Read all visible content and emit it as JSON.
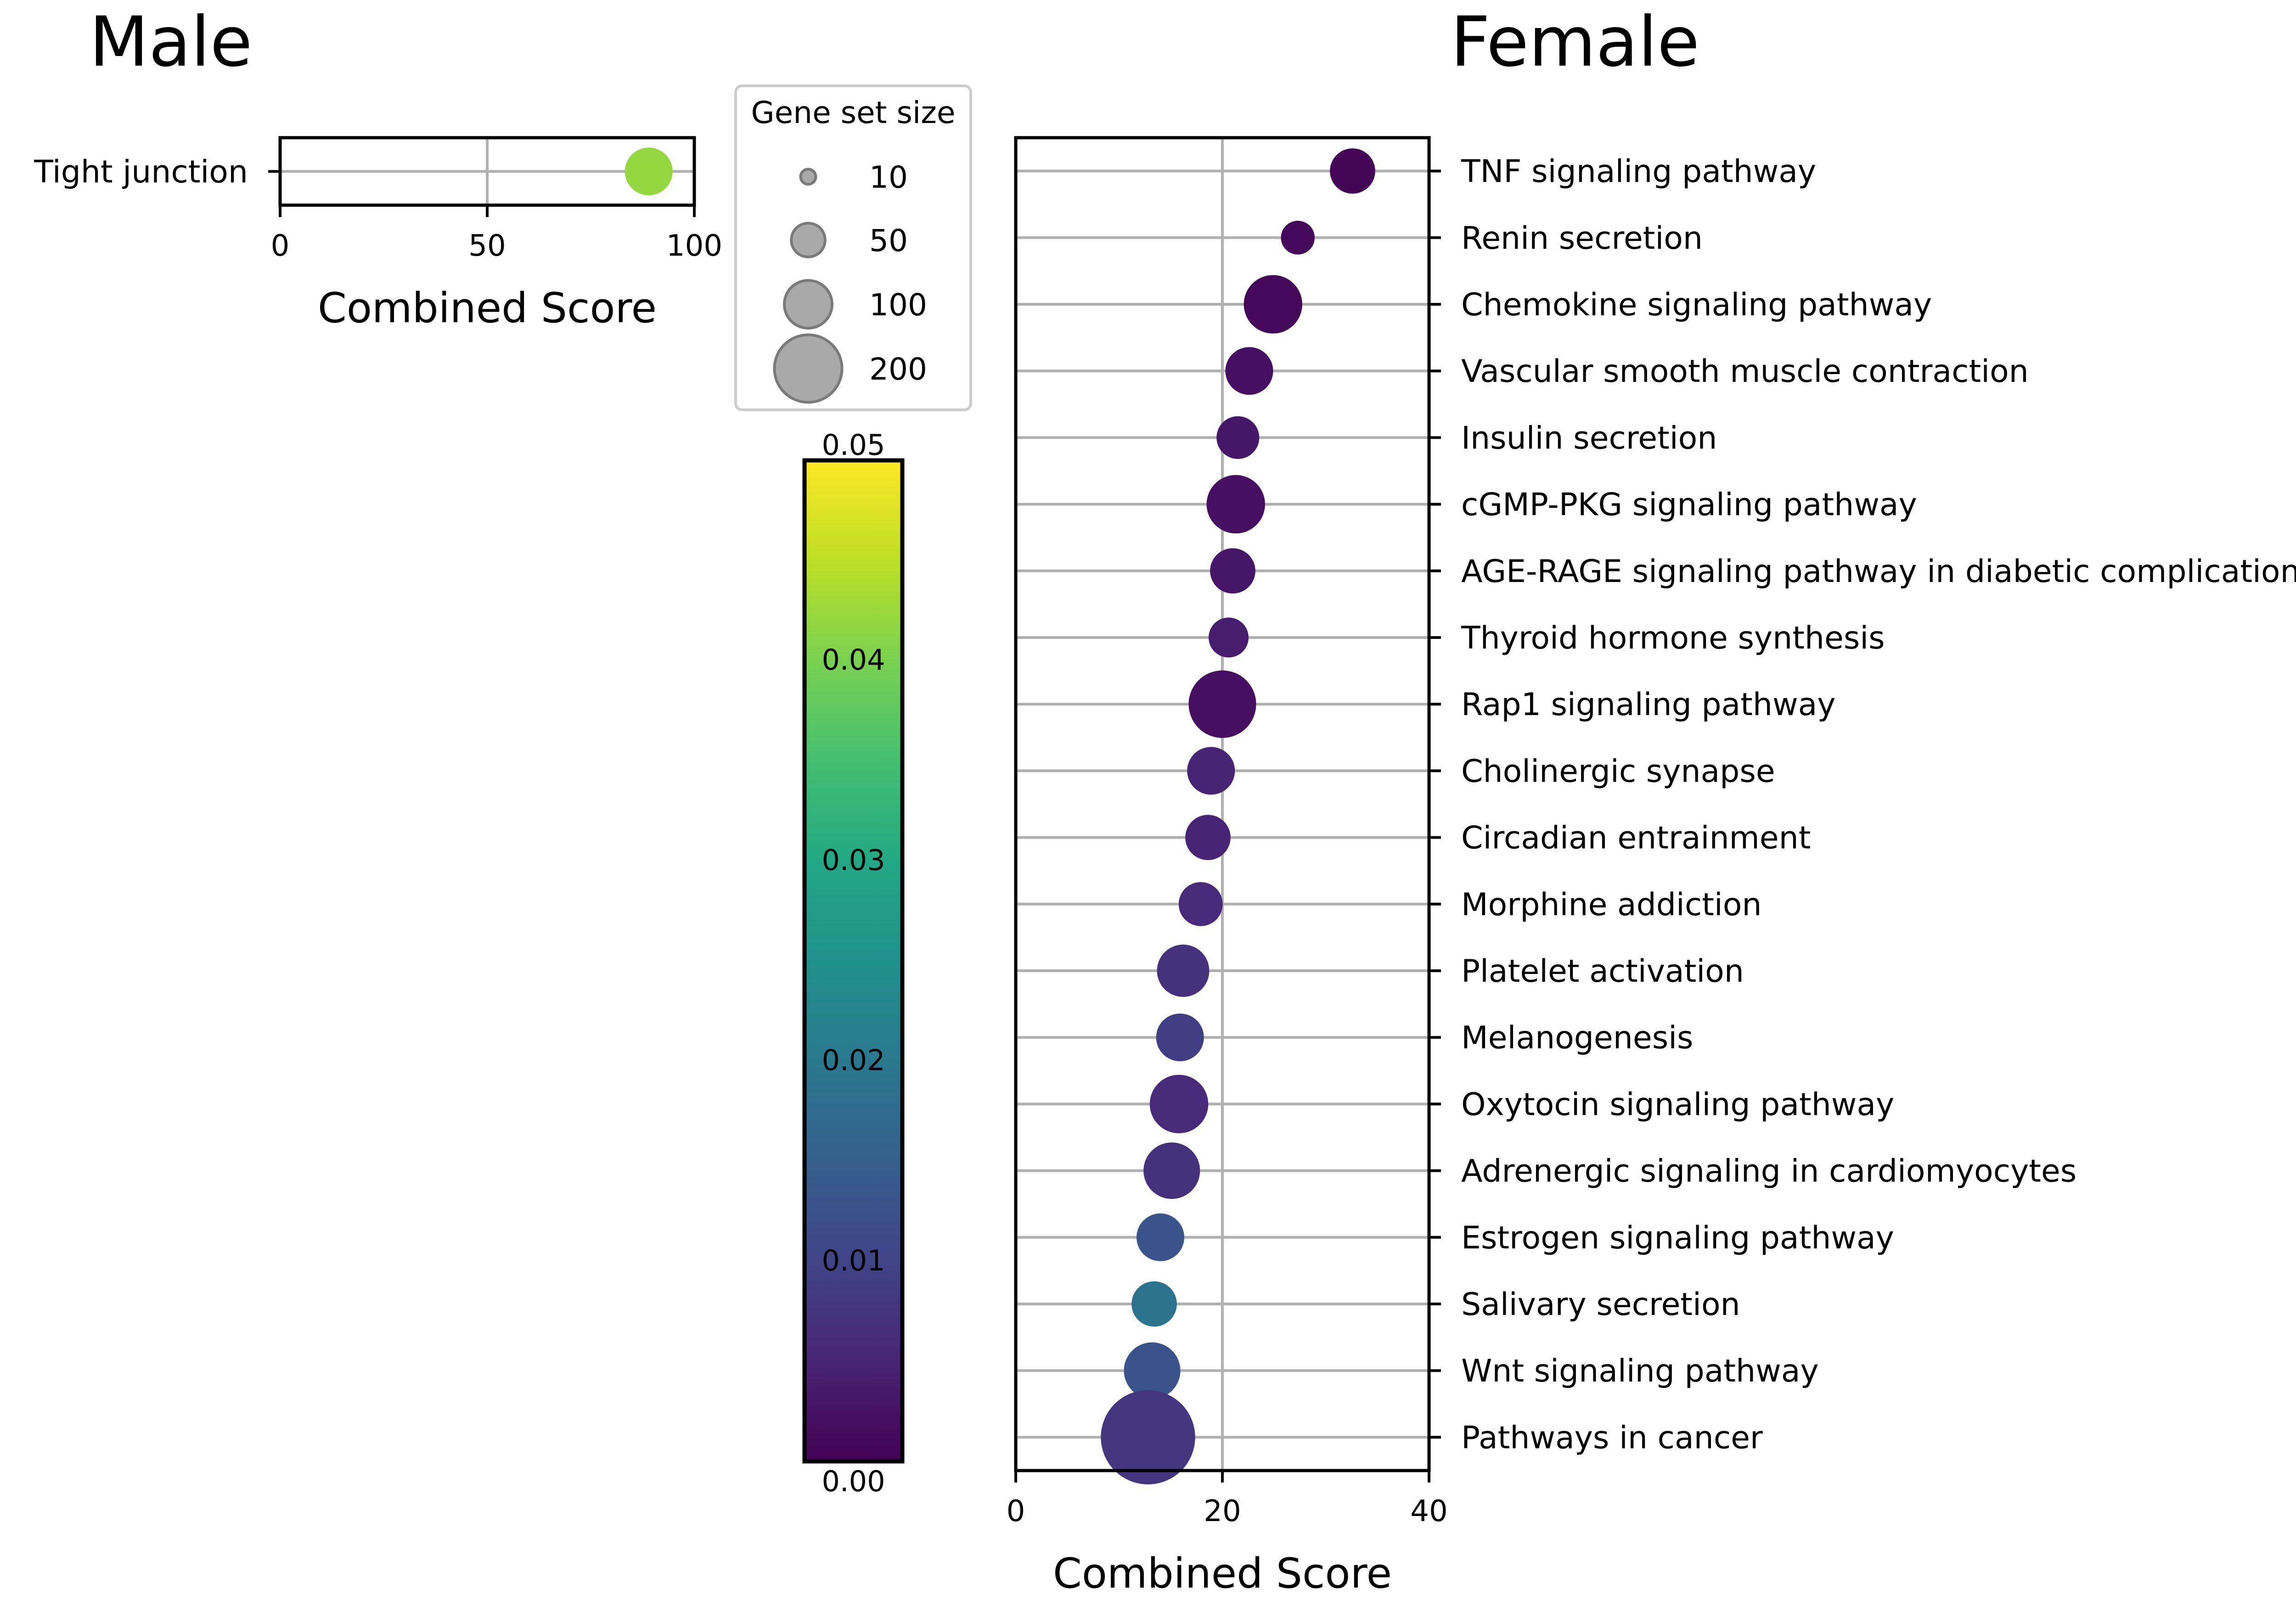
{
  "chart_data": [
    {
      "type": "scatter",
      "panel": "male",
      "title": "Male",
      "xlabel": "Combined Score",
      "xlim": [
        0,
        100
      ],
      "xticks": [
        "0",
        "50",
        "100"
      ],
      "points": [
        {
          "term": "Tight junction",
          "score": 89,
          "gene_set_size": 100,
          "p_value": 0.042
        }
      ]
    },
    {
      "type": "scatter",
      "panel": "female",
      "title": "Female",
      "xlabel": "Combined Score",
      "xlim": [
        0,
        40
      ],
      "xticks": [
        "0",
        "20",
        "40"
      ],
      "points": [
        {
          "term": "TNF signaling pathway",
          "score": 32.6,
          "gene_set_size": 90,
          "p_value": 0.0005
        },
        {
          "term": "Renin secretion",
          "score": 27.3,
          "gene_set_size": 50,
          "p_value": 0.001
        },
        {
          "term": "Chemokine signaling pathway",
          "score": 24.9,
          "gene_set_size": 150,
          "p_value": 0.0008
        },
        {
          "term": "Vascular smooth muscle contraction",
          "score": 22.6,
          "gene_set_size": 100,
          "p_value": 0.002
        },
        {
          "term": "Insulin secretion",
          "score": 21.5,
          "gene_set_size": 80,
          "p_value": 0.003
        },
        {
          "term": "cGMP-PKG signaling pathway",
          "score": 21.3,
          "gene_set_size": 150,
          "p_value": 0.002
        },
        {
          "term": "AGE-RAGE signaling pathway in diabetic complications",
          "score": 21.0,
          "gene_set_size": 90,
          "p_value": 0.003
        },
        {
          "term": "Thyroid hormone synthesis",
          "score": 20.6,
          "gene_set_size": 70,
          "p_value": 0.004
        },
        {
          "term": "Rap1 signaling pathway",
          "score": 20.0,
          "gene_set_size": 200,
          "p_value": 0.002
        },
        {
          "term": "Cholinergic synapse",
          "score": 18.9,
          "gene_set_size": 100,
          "p_value": 0.005
        },
        {
          "term": "Circadian entrainment",
          "score": 18.6,
          "gene_set_size": 90,
          "p_value": 0.005
        },
        {
          "term": "Morphine addiction",
          "score": 17.9,
          "gene_set_size": 85,
          "p_value": 0.006
        },
        {
          "term": "Platelet activation",
          "score": 16.2,
          "gene_set_size": 120,
          "p_value": 0.007
        },
        {
          "term": "Melanogenesis",
          "score": 15.9,
          "gene_set_size": 100,
          "p_value": 0.009
        },
        {
          "term": "Oxytocin signaling pathway",
          "score": 15.8,
          "gene_set_size": 150,
          "p_value": 0.006
        },
        {
          "term": "Adrenergic signaling in cardiomyocytes",
          "score": 15.1,
          "gene_set_size": 140,
          "p_value": 0.007
        },
        {
          "term": "Estrogen signaling pathway",
          "score": 14.0,
          "gene_set_size": 100,
          "p_value": 0.013
        },
        {
          "term": "Salivary secretion",
          "score": 13.4,
          "gene_set_size": 90,
          "p_value": 0.019
        },
        {
          "term": "Wnt signaling pathway",
          "score": 13.2,
          "gene_set_size": 140,
          "p_value": 0.013
        },
        {
          "term": "Pathways in cancer",
          "score": 12.8,
          "gene_set_size": 390,
          "p_value": 0.008
        }
      ]
    }
  ],
  "legend": {
    "title": "Gene set size",
    "entries": [
      {
        "label": "10",
        "size": 10
      },
      {
        "label": "50",
        "size": 50
      },
      {
        "label": "100",
        "size": 100
      },
      {
        "label": "200",
        "size": 200
      }
    ]
  },
  "colorbar": {
    "colormap": "viridis",
    "range": [
      0.0,
      0.05
    ],
    "ticks": [
      "0.00",
      "0.01",
      "0.02",
      "0.03",
      "0.04",
      "0.05"
    ],
    "tick_values": [
      0.0,
      0.01,
      0.02,
      0.03,
      0.04,
      0.05
    ]
  },
  "colors": {
    "grid": "#b0b0b0",
    "legend_marker": "#a9a9a9",
    "legend_marker_edge": "#7a7a7a",
    "axis": "#000000"
  }
}
